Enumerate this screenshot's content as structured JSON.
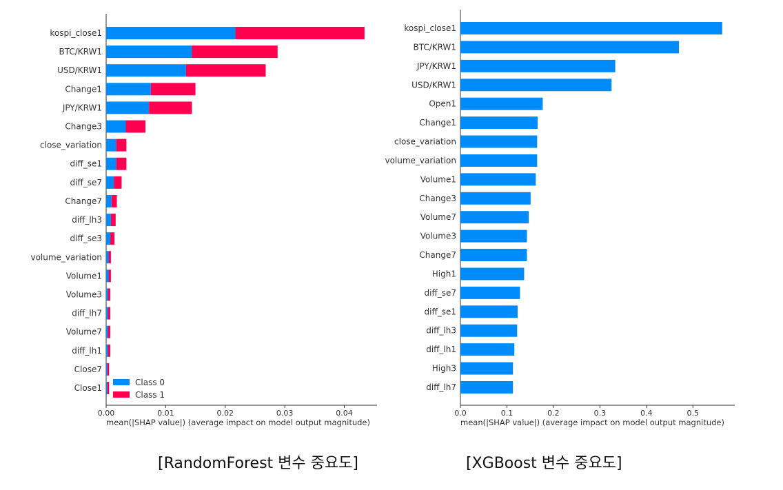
{
  "chart_data": [
    {
      "type": "bar",
      "orientation": "horizontal",
      "stacked": true,
      "categories": [
        "kospi_close1",
        "BTC/KRW1",
        "USD/KRW1",
        "Change1",
        "JPY/KRW1",
        "Change3",
        "close_variation",
        "diff_se1",
        "diff_se7",
        "Change7",
        "diff_lh3",
        "diff_se3",
        "volume_variation",
        "Volume1",
        "Volume3",
        "diff_lh7",
        "Volume7",
        "diff_lh1",
        "Close7",
        "Close1"
      ],
      "series": [
        {
          "name": "Class 0",
          "color": "#008bfb",
          "values": [
            0.0217,
            0.0144,
            0.0134,
            0.0075,
            0.0072,
            0.0033,
            0.0017,
            0.0017,
            0.0013,
            0.0009,
            0.0008,
            0.0007,
            0.0004,
            0.0004,
            0.0003,
            0.0003,
            0.0003,
            0.0003,
            0.0002,
            0.0002
          ]
        },
        {
          "name": "Class 1",
          "color": "#ff0051",
          "values": [
            0.0217,
            0.0144,
            0.0134,
            0.0075,
            0.0072,
            0.0033,
            0.0017,
            0.0017,
            0.0013,
            0.0009,
            0.0008,
            0.0007,
            0.0004,
            0.0004,
            0.0004,
            0.0004,
            0.0004,
            0.0004,
            0.0003,
            0.0003
          ]
        }
      ],
      "xticks": [
        "0.00",
        "0.01",
        "0.02",
        "0.03",
        "0.04"
      ],
      "xlim": [
        0,
        0.0455
      ],
      "xlabel": "mean(|SHAP value|) (average impact on model output magnitude)",
      "legend_position": "lower-left",
      "caption": "[RandomForest  변수  중요도]"
    },
    {
      "type": "bar",
      "orientation": "horizontal",
      "categories": [
        "kospi_close1",
        "BTC/KRW1",
        "JPY/KRW1",
        "USD/KRW1",
        "Open1",
        "Change1",
        "close_variation",
        "volume_variation",
        "Volume1",
        "Change3",
        "Volume7",
        "Volume3",
        "Change7",
        "High1",
        "diff_se7",
        "diff_se1",
        "diff_lh3",
        "diff_lh1",
        "High3",
        "diff_lh7"
      ],
      "series": [
        {
          "color": "#008bfb",
          "values": [
            0.563,
            0.47,
            0.333,
            0.325,
            0.177,
            0.166,
            0.165,
            0.165,
            0.162,
            0.151,
            0.147,
            0.143,
            0.143,
            0.137,
            0.128,
            0.123,
            0.122,
            0.116,
            0.113,
            0.113
          ]
        }
      ],
      "xticks": [
        "0.0",
        "0.1",
        "0.2",
        "0.3",
        "0.4",
        "0.5"
      ],
      "xlim": [
        0,
        0.59
      ],
      "xlabel": "mean(|SHAP value|) (average impact on model output magnitude)",
      "caption": "[XGBoost  변수  중요도]"
    }
  ]
}
